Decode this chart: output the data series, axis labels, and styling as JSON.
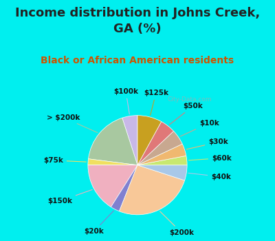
{
  "title": "Income distribution in Johns Creek,\nGA (%)",
  "subtitle": "Black or African American residents",
  "bg_color": "#00EFEF",
  "chart_bg": "#d8f0e8",
  "watermark": "City-Data.com",
  "title_color": "#222222",
  "subtitle_color": "#cc5500",
  "labels": [
    "$100k",
    "> $200k",
    "$75k",
    "$150k",
    "$20k",
    "$200k",
    "$40k",
    "$60k",
    "$30k",
    "$10k",
    "$50k",
    "$125k"
  ],
  "values": [
    5,
    18,
    2,
    16,
    3,
    26,
    5,
    3,
    4,
    5,
    5,
    8
  ],
  "colors": [
    "#c8b8e8",
    "#a8c8a0",
    "#f0e060",
    "#f0b0c0",
    "#8080d0",
    "#f8c898",
    "#a8c8e8",
    "#c8e870",
    "#f0b870",
    "#c8a890",
    "#e07878",
    "#c8a020"
  ],
  "start_angle": 90,
  "label_fontsize": 7.5,
  "title_fontsize": 13,
  "subtitle_fontsize": 10
}
